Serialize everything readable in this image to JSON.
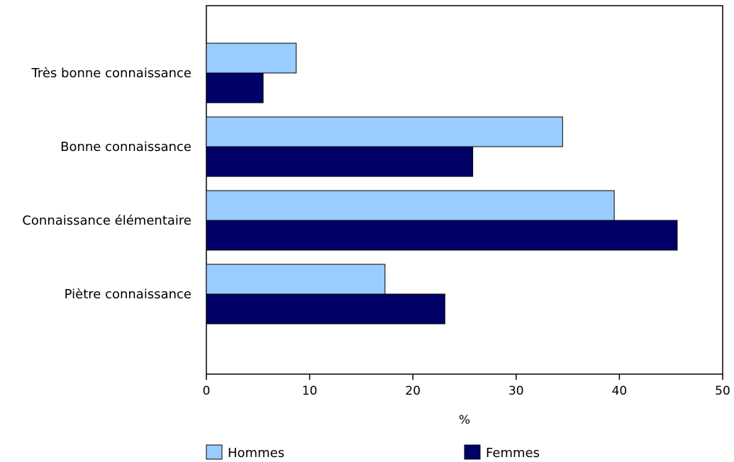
{
  "chart_data": {
    "type": "bar",
    "orientation": "horizontal",
    "categories": [
      "Très bonne connaissance",
      "Bonne connaissance",
      "Connaissance élémentaire",
      "Piètre connaissance"
    ],
    "series": [
      {
        "name": "Hommes",
        "color": "#99ccff",
        "values": [
          8.7,
          34.5,
          39.5,
          17.3
        ]
      },
      {
        "name": "Femmes",
        "color": "#000066",
        "values": [
          5.5,
          25.8,
          45.6,
          23.1
        ]
      }
    ],
    "xlabel": "%",
    "ylabel": "",
    "xlim": [
      0,
      50
    ],
    "xticks": [
      "0",
      "10",
      "20",
      "30",
      "40",
      "50"
    ],
    "grid": false,
    "legend_position": "bottom"
  }
}
